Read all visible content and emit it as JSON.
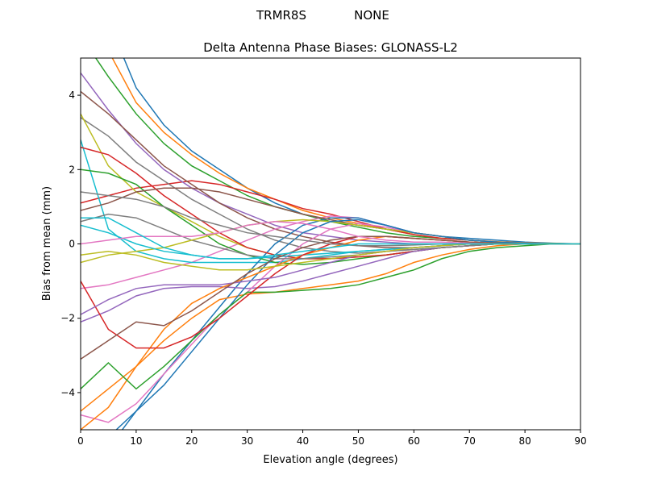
{
  "chart_data": {
    "type": "line",
    "suptitle": [
      "TRMR8S",
      "NONE"
    ],
    "title": "Delta Antenna Phase Biases: GLONASS-L2",
    "xlabel": "Elevation angle (degrees)",
    "ylabel": "Bias from mean (mm)",
    "xlim": [
      0,
      90
    ],
    "ylim": [
      -5,
      5
    ],
    "xticks": [
      0,
      10,
      20,
      30,
      40,
      50,
      60,
      70,
      80,
      90
    ],
    "yticks": [
      -4,
      -2,
      0,
      2,
      4
    ],
    "ytick_labels": [
      "−4",
      "−2",
      "0",
      "2",
      "4"
    ],
    "grid": false,
    "colors": [
      "#1f77b4",
      "#ff7f0e",
      "#2ca02c",
      "#d62728",
      "#9467bd",
      "#8c564b",
      "#e377c2",
      "#7f7f7f",
      "#bcbd22",
      "#17becf"
    ],
    "x": [
      0,
      5,
      10,
      15,
      20,
      25,
      30,
      35,
      40,
      45,
      50,
      55,
      60,
      65,
      70,
      75,
      80,
      85,
      90
    ],
    "series": [
      {
        "values": [
          7.5,
          6,
          4.2,
          3.2,
          2.5,
          2.0,
          1.5,
          1.1,
          0.8,
          0.6,
          0.5,
          0.4,
          0.3,
          0.2,
          0.15,
          0.1,
          0.05,
          0.02,
          0
        ]
      },
      {
        "values": [
          6.5,
          5.2,
          3.8,
          3.0,
          2.4,
          1.9,
          1.5,
          1.2,
          0.9,
          0.7,
          0.55,
          0.4,
          0.25,
          0.15,
          0.1,
          0.06,
          0.03,
          0.01,
          0
        ]
      },
      {
        "values": [
          5.6,
          4.5,
          3.5,
          2.7,
          2.1,
          1.7,
          1.3,
          1.0,
          0.8,
          0.6,
          0.45,
          0.3,
          0.2,
          0.15,
          0.1,
          0.05,
          0.02,
          0.01,
          0
        ]
      },
      {
        "values": [
          1.1,
          1.3,
          1.5,
          1.6,
          1.7,
          1.6,
          1.4,
          1.2,
          0.95,
          0.8,
          0.6,
          0.4,
          0.25,
          0.15,
          0.1,
          0.05,
          0.02,
          0,
          0
        ]
      },
      {
        "values": [
          4.6,
          3.6,
          2.7,
          2.0,
          1.5,
          1.1,
          0.8,
          0.5,
          0.3,
          0.2,
          0.1,
          0.05,
          0,
          0,
          0,
          0,
          0,
          0,
          0
        ]
      },
      {
        "values": [
          4.1,
          3.5,
          2.8,
          2.1,
          1.6,
          1.1,
          0.7,
          0.4,
          0.2,
          0.05,
          -0.05,
          -0.1,
          -0.1,
          -0.05,
          0,
          0,
          0,
          0,
          0
        ]
      },
      {
        "values": [
          -1.2,
          -1.1,
          -0.9,
          -0.7,
          -0.5,
          -0.2,
          0.1,
          0.4,
          0.6,
          0.75,
          0.7,
          0.5,
          0.3,
          0.2,
          0.1,
          0.05,
          0.02,
          0,
          0
        ]
      },
      {
        "values": [
          3.4,
          2.9,
          2.2,
          1.7,
          1.2,
          0.8,
          0.4,
          0.1,
          -0.1,
          -0.2,
          -0.25,
          -0.2,
          -0.15,
          -0.1,
          -0.05,
          0,
          0,
          0,
          0
        ]
      },
      {
        "values": [
          3.5,
          2.1,
          1.4,
          1.0,
          0.6,
          0.2,
          -0.1,
          -0.3,
          -0.4,
          -0.4,
          -0.35,
          -0.3,
          -0.2,
          -0.1,
          -0.05,
          0,
          0,
          0,
          0
        ]
      },
      {
        "values": [
          2.8,
          0.4,
          -0.2,
          -0.4,
          -0.5,
          -0.5,
          -0.5,
          -0.5,
          -0.4,
          -0.3,
          -0.2,
          -0.15,
          -0.1,
          -0.05,
          0,
          0,
          0,
          0,
          0
        ]
      },
      {
        "values": [
          -6,
          -5.2,
          -4.5,
          -3.5,
          -2.6,
          -1.7,
          -0.8,
          0.0,
          0.5,
          0.7,
          0.7,
          0.5,
          0.3,
          0.2,
          0.1,
          0.05,
          0.02,
          0,
          0
        ]
      },
      {
        "values": [
          -4.5,
          -3.9,
          -3.3,
          -2.6,
          -2.0,
          -1.5,
          -1.35,
          -1.3,
          -1.2,
          -1.1,
          -1.0,
          -0.8,
          -0.5,
          -0.3,
          -0.15,
          -0.05,
          0,
          0,
          0
        ]
      },
      {
        "values": [
          2.0,
          1.9,
          1.6,
          1.0,
          0.5,
          0.0,
          -0.3,
          -0.5,
          -0.55,
          -0.5,
          -0.4,
          -0.3,
          -0.2,
          -0.1,
          -0.05,
          0,
          0,
          0,
          0
        ]
      },
      {
        "values": [
          2.6,
          2.4,
          1.9,
          1.3,
          0.8,
          0.3,
          -0.1,
          -0.3,
          -0.4,
          -0.4,
          -0.35,
          -0.3,
          -0.2,
          -0.1,
          -0.05,
          0,
          0,
          0,
          0
        ]
      },
      {
        "values": [
          -2.1,
          -1.8,
          -1.4,
          -1.2,
          -1.15,
          -1.15,
          -1.2,
          -1.15,
          -1.0,
          -0.8,
          -0.6,
          -0.4,
          -0.2,
          -0.1,
          -0.05,
          0,
          0,
          0,
          0
        ]
      },
      {
        "values": [
          0.9,
          1.1,
          1.4,
          1.5,
          1.5,
          1.4,
          1.2,
          1.0,
          0.8,
          0.65,
          0.5,
          0.4,
          0.3,
          0.2,
          0.1,
          0.05,
          0.02,
          0,
          0
        ]
      },
      {
        "values": [
          -4.6,
          -4.8,
          -4.3,
          -3.5,
          -2.7,
          -1.9,
          -1.3,
          -0.6,
          0.0,
          0.4,
          0.55,
          0.45,
          0.3,
          0.2,
          0.1,
          0.05,
          0.02,
          0,
          0
        ]
      },
      {
        "values": [
          0.6,
          0.8,
          0.7,
          0.4,
          0.1,
          -0.1,
          -0.3,
          -0.4,
          -0.4,
          -0.35,
          -0.3,
          -0.2,
          -0.15,
          -0.1,
          -0.05,
          0,
          0,
          0,
          0
        ]
      },
      {
        "values": [
          -0.5,
          -0.3,
          -0.2,
          -0.1,
          0.1,
          0.3,
          0.5,
          0.6,
          0.65,
          0.6,
          0.5,
          0.4,
          0.3,
          0.2,
          0.1,
          0.05,
          0.02,
          0,
          0
        ]
      },
      {
        "values": [
          0.5,
          0.3,
          0.0,
          -0.2,
          -0.3,
          -0.4,
          -0.4,
          -0.35,
          -0.3,
          -0.25,
          -0.2,
          -0.15,
          -0.1,
          -0.05,
          0,
          0,
          0,
          0,
          0
        ]
      },
      {
        "values": [
          -7,
          -5.5,
          -4.5,
          -3.8,
          -2.9,
          -2.0,
          -1.1,
          -0.3,
          0.3,
          0.6,
          0.65,
          0.5,
          0.3,
          0.2,
          0.1,
          0.05,
          0.02,
          0,
          0
        ]
      },
      {
        "values": [
          -5.0,
          -4.4,
          -3.3,
          -2.3,
          -1.6,
          -1.2,
          -0.9,
          -0.6,
          -0.3,
          -0.1,
          0.1,
          0.2,
          0.15,
          0.1,
          0.05,
          0.02,
          0,
          0,
          0
        ]
      },
      {
        "values": [
          -3.9,
          -3.2,
          -3.9,
          -3.3,
          -2.6,
          -1.9,
          -1.3,
          -1.3,
          -1.25,
          -1.2,
          -1.1,
          -0.9,
          -0.7,
          -0.4,
          -0.2,
          -0.1,
          -0.05,
          0,
          0
        ]
      },
      {
        "values": [
          -1.0,
          -2.3,
          -2.8,
          -2.8,
          -2.5,
          -2.0,
          -1.4,
          -0.8,
          -0.3,
          0.0,
          0.2,
          0.2,
          0.15,
          0.1,
          0.05,
          0.02,
          0,
          0,
          0
        ]
      },
      {
        "values": [
          -1.9,
          -1.5,
          -1.2,
          -1.1,
          -1.1,
          -1.1,
          -1.0,
          -0.9,
          -0.7,
          -0.5,
          -0.3,
          -0.2,
          -0.1,
          -0.05,
          0,
          0,
          0,
          0,
          0
        ]
      },
      {
        "values": [
          -3.1,
          -2.6,
          -2.1,
          -2.2,
          -1.8,
          -1.3,
          -0.8,
          -0.4,
          -0.1,
          0.1,
          0.2,
          0.2,
          0.15,
          0.1,
          0.05,
          0.02,
          0,
          0,
          0
        ]
      },
      {
        "values": [
          0.0,
          0.1,
          0.2,
          0.2,
          0.2,
          0.3,
          0.5,
          0.6,
          0.55,
          0.4,
          0.2,
          0.1,
          0.05,
          0.05,
          0.02,
          0,
          0,
          0,
          0
        ]
      },
      {
        "values": [
          1.4,
          1.3,
          1.2,
          1.0,
          0.7,
          0.5,
          0.3,
          0.2,
          0.1,
          0.0,
          -0.05,
          -0.05,
          -0.03,
          0,
          0,
          0,
          0,
          0,
          0
        ]
      },
      {
        "values": [
          -0.3,
          -0.2,
          -0.3,
          -0.5,
          -0.6,
          -0.7,
          -0.7,
          -0.6,
          -0.5,
          -0.4,
          -0.3,
          -0.2,
          -0.1,
          -0.05,
          0,
          0,
          0,
          0,
          0
        ]
      },
      {
        "values": [
          0.7,
          0.7,
          0.3,
          -0.1,
          -0.3,
          -0.4,
          -0.4,
          -0.3,
          -0.2,
          -0.1,
          0.0,
          0.0,
          0,
          0,
          0,
          0,
          0,
          0,
          0
        ]
      }
    ]
  }
}
